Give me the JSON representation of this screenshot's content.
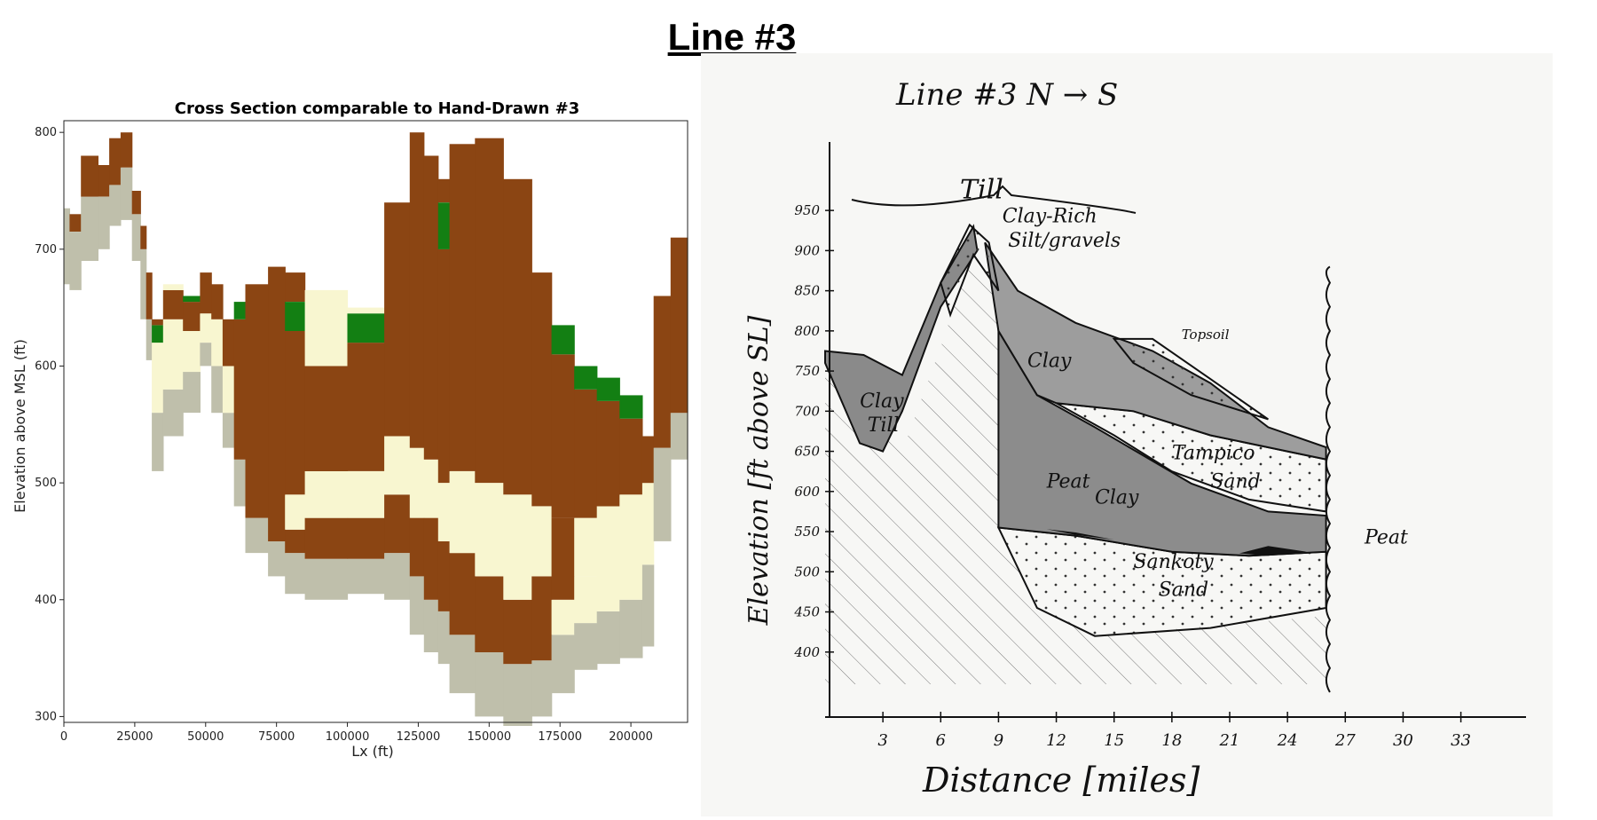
{
  "page": {
    "title": "Line #3"
  },
  "chart_data": [
    {
      "type": "heatmap",
      "title": "Cross Section comparable to Hand-Drawn #3",
      "xlabel": "Lx (ft)",
      "ylabel": "Elevation above MSL (ft)",
      "xlim": [
        0,
        220000
      ],
      "ylim": [
        295,
        810
      ],
      "xticks": [
        "0",
        "25000",
        "50000",
        "75000",
        "100000",
        "125000",
        "150000",
        "175000",
        "200000"
      ],
      "yticks": [
        "300",
        "400",
        "500",
        "600",
        "700",
        "800"
      ],
      "colors": {
        "clay": "#8b4513",
        "sand": "#f8f6d0",
        "silt_gravel": "#bfbfab",
        "topsoil": "#137f13"
      },
      "columns": [
        {
          "x": [
            0,
            2000
          ],
          "layers": [
            [
              "silt_gravel",
              670,
              735
            ]
          ]
        },
        {
          "x": [
            2000,
            6000
          ],
          "layers": [
            [
              "silt_gravel",
              665,
              715
            ],
            [
              "clay",
              715,
              730
            ]
          ]
        },
        {
          "x": [
            6000,
            12000
          ],
          "layers": [
            [
              "silt_gravel",
              690,
              745
            ],
            [
              "clay",
              745,
              780
            ]
          ]
        },
        {
          "x": [
            12000,
            16000
          ],
          "layers": [
            [
              "silt_gravel",
              700,
              745
            ],
            [
              "clay",
              745,
              772
            ]
          ]
        },
        {
          "x": [
            16000,
            20000
          ],
          "layers": [
            [
              "silt_gravel",
              720,
              755
            ],
            [
              "clay",
              755,
              795
            ]
          ]
        },
        {
          "x": [
            20000,
            24000
          ],
          "layers": [
            [
              "silt_gravel",
              725,
              770
            ],
            [
              "clay",
              770,
              800
            ]
          ]
        },
        {
          "x": [
            24000,
            27000
          ],
          "layers": [
            [
              "silt_gravel",
              690,
              730
            ],
            [
              "clay",
              730,
              750
            ]
          ]
        },
        {
          "x": [
            27000,
            29000
          ],
          "layers": [
            [
              "silt_gravel",
              640,
              700
            ],
            [
              "clay",
              700,
              720
            ]
          ]
        },
        {
          "x": [
            29000,
            31000
          ],
          "layers": [
            [
              "silt_gravel",
              605,
              640
            ],
            [
              "clay",
              640,
              680
            ]
          ]
        },
        {
          "x": [
            31000,
            35000
          ],
          "layers": [
            [
              "silt_gravel",
              510,
              560
            ],
            [
              "sand",
              560,
              620
            ],
            [
              "topsoil",
              620,
              635
            ],
            [
              "clay",
              635,
              640
            ]
          ]
        },
        {
          "x": [
            35000,
            42000
          ],
          "layers": [
            [
              "silt_gravel",
              540,
              580
            ],
            [
              "sand",
              580,
              640
            ],
            [
              "clay",
              640,
              665
            ],
            [
              "sand",
              665,
              670
            ]
          ]
        },
        {
          "x": [
            42000,
            48000
          ],
          "layers": [
            [
              "silt_gravel",
              560,
              595
            ],
            [
              "sand",
              595,
              630
            ],
            [
              "clay",
              630,
              655
            ],
            [
              "topsoil",
              655,
              660
            ]
          ]
        },
        {
          "x": [
            48000,
            52000
          ],
          "layers": [
            [
              "silt_gravel",
              600,
              620
            ],
            [
              "sand",
              620,
              645
            ],
            [
              "clay",
              645,
              680
            ]
          ]
        },
        {
          "x": [
            52000,
            56000
          ],
          "layers": [
            [
              "silt_gravel",
              560,
              600
            ],
            [
              "sand",
              600,
              640
            ],
            [
              "clay",
              640,
              670
            ]
          ]
        },
        {
          "x": [
            56000,
            60000
          ],
          "layers": [
            [
              "silt_gravel",
              530,
              560
            ],
            [
              "sand",
              560,
              600
            ],
            [
              "clay",
              600,
              640
            ]
          ]
        },
        {
          "x": [
            60000,
            64000
          ],
          "layers": [
            [
              "silt_gravel",
              480,
              520
            ],
            [
              "clay",
              520,
              640
            ],
            [
              "topsoil",
              640,
              655
            ]
          ]
        },
        {
          "x": [
            64000,
            72000
          ],
          "layers": [
            [
              "silt_gravel",
              440,
              470
            ],
            [
              "clay",
              470,
              670
            ]
          ]
        },
        {
          "x": [
            72000,
            78000
          ],
          "layers": [
            [
              "silt_gravel",
              420,
              450
            ],
            [
              "clay",
              450,
              685
            ]
          ]
        },
        {
          "x": [
            78000,
            85000
          ],
          "layers": [
            [
              "silt_gravel",
              405,
              440
            ],
            [
              "clay",
              440,
              460
            ],
            [
              "sand",
              460,
              490
            ],
            [
              "clay",
              490,
              630
            ],
            [
              "topsoil",
              630,
              655
            ],
            [
              "clay",
              655,
              680
            ]
          ]
        },
        {
          "x": [
            85000,
            100000
          ],
          "layers": [
            [
              "silt_gravel",
              400,
              435
            ],
            [
              "clay",
              435,
              470
            ],
            [
              "sand",
              470,
              510
            ],
            [
              "clay",
              510,
              600
            ],
            [
              "sand",
              600,
              665
            ]
          ]
        },
        {
          "x": [
            100000,
            113000
          ],
          "layers": [
            [
              "silt_gravel",
              405,
              435
            ],
            [
              "clay",
              435,
              470
            ],
            [
              "sand",
              470,
              510
            ],
            [
              "clay",
              510,
              620
            ],
            [
              "topsoil",
              620,
              645
            ],
            [
              "sand",
              645,
              650
            ]
          ]
        },
        {
          "x": [
            113000,
            122000
          ],
          "layers": [
            [
              "silt_gravel",
              400,
              440
            ],
            [
              "clay",
              440,
              490
            ],
            [
              "sand",
              490,
              540
            ],
            [
              "clay",
              540,
              740
            ]
          ]
        },
        {
          "x": [
            122000,
            127000
          ],
          "layers": [
            [
              "silt_gravel",
              370,
              420
            ],
            [
              "clay",
              420,
              470
            ],
            [
              "sand",
              470,
              530
            ],
            [
              "clay",
              530,
              800
            ]
          ]
        },
        {
          "x": [
            127000,
            132000
          ],
          "layers": [
            [
              "silt_gravel",
              355,
              400
            ],
            [
              "clay",
              400,
              470
            ],
            [
              "sand",
              470,
              520
            ],
            [
              "clay",
              520,
              780
            ]
          ]
        },
        {
          "x": [
            132000,
            136000
          ],
          "layers": [
            [
              "silt_gravel",
              345,
              390
            ],
            [
              "clay",
              390,
              450
            ],
            [
              "sand",
              450,
              500
            ],
            [
              "clay",
              500,
              700
            ],
            [
              "topsoil",
              700,
              740
            ],
            [
              "clay",
              740,
              760
            ]
          ]
        },
        {
          "x": [
            136000,
            145000
          ],
          "layers": [
            [
              "silt_gravel",
              320,
              370
            ],
            [
              "clay",
              370,
              440
            ],
            [
              "sand",
              440,
              510
            ],
            [
              "clay",
              510,
              790
            ]
          ]
        },
        {
          "x": [
            145000,
            155000
          ],
          "layers": [
            [
              "silt_gravel",
              300,
              355
            ],
            [
              "clay",
              355,
              420
            ],
            [
              "sand",
              420,
              500
            ],
            [
              "clay",
              500,
              795
            ]
          ]
        },
        {
          "x": [
            155000,
            165000
          ],
          "layers": [
            [
              "silt_gravel",
              292,
              345
            ],
            [
              "clay",
              345,
              400
            ],
            [
              "sand",
              400,
              490
            ],
            [
              "clay",
              490,
              760
            ]
          ]
        },
        {
          "x": [
            165000,
            172000
          ],
          "layers": [
            [
              "silt_gravel",
              300,
              348
            ],
            [
              "clay",
              348,
              420
            ],
            [
              "sand",
              420,
              480
            ],
            [
              "clay",
              480,
              680
            ]
          ]
        },
        {
          "x": [
            172000,
            180000
          ],
          "layers": [
            [
              "silt_gravel",
              320,
              370
            ],
            [
              "sand",
              370,
              400
            ],
            [
              "clay",
              400,
              470
            ],
            [
              "clay",
              470,
              610
            ],
            [
              "topsoil",
              610,
              635
            ]
          ]
        },
        {
          "x": [
            180000,
            188000
          ],
          "layers": [
            [
              "silt_gravel",
              340,
              380
            ],
            [
              "sand",
              380,
              420
            ],
            [
              "sand",
              420,
              470
            ],
            [
              "clay",
              470,
              580
            ],
            [
              "topsoil",
              580,
              600
            ]
          ]
        },
        {
          "x": [
            188000,
            196000
          ],
          "layers": [
            [
              "silt_gravel",
              345,
              390
            ],
            [
              "sand",
              390,
              480
            ],
            [
              "clay",
              480,
              570
            ],
            [
              "topsoil",
              570,
              590
            ]
          ]
        },
        {
          "x": [
            196000,
            204000
          ],
          "layers": [
            [
              "silt_gravel",
              350,
              400
            ],
            [
              "sand",
              400,
              490
            ],
            [
              "clay",
              490,
              555
            ],
            [
              "topsoil",
              555,
              575
            ]
          ]
        },
        {
          "x": [
            204000,
            208000
          ],
          "layers": [
            [
              "silt_gravel",
              360,
              430
            ],
            [
              "sand",
              430,
              500
            ],
            [
              "clay",
              500,
              540
            ]
          ]
        },
        {
          "x": [
            208000,
            214000
          ],
          "layers": [
            [
              "silt_gravel",
              450,
              530
            ],
            [
              "clay",
              530,
              660
            ]
          ]
        },
        {
          "x": [
            214000,
            220000
          ],
          "layers": [
            [
              "silt_gravel",
              520,
              560
            ],
            [
              "clay",
              560,
              710
            ]
          ]
        }
      ]
    },
    {
      "type": "area",
      "title": "Line #3 N → S",
      "xlabel": "Distance [miles]",
      "ylabel": "Elevation [ft above SL]",
      "xlim": [
        0,
        35
      ],
      "ylim": [
        350,
        980
      ],
      "xticks": [
        "3",
        "6",
        "9",
        "12",
        "15",
        "18",
        "21",
        "24",
        "27",
        "30",
        "33"
      ],
      "yticks": [
        "950",
        "900",
        "850",
        "800",
        "750",
        "700",
        "650",
        "600",
        "550",
        "500",
        "450",
        "400"
      ],
      "surface": {
        "x": [
          0,
          2,
          4,
          6,
          7.5,
          8.5,
          10,
          13,
          17,
          20,
          23,
          26
        ],
        "y": [
          775,
          770,
          760,
          870,
          930,
          910,
          850,
          810,
          775,
          735,
          680,
          655
        ]
      },
      "annotations": [
        {
          "text": "Till",
          "x": 7,
          "y": 965
        },
        {
          "text": "Clay-Rich",
          "x": 9.2,
          "y": 935
        },
        {
          "text": "Silt/gravels",
          "x": 9.5,
          "y": 905
        },
        {
          "text": "Topsoil",
          "x": 18.5,
          "y": 790
        },
        {
          "text": "Clay",
          "x": 10.5,
          "y": 755
        },
        {
          "text": "Clay",
          "x": 1.8,
          "y": 705
        },
        {
          "text": "Till",
          "x": 2.2,
          "y": 675
        },
        {
          "text": "Tampico",
          "x": 18,
          "y": 640
        },
        {
          "text": "Sand",
          "x": 20,
          "y": 605
        },
        {
          "text": "Peat",
          "x": 11.5,
          "y": 605
        },
        {
          "text": "Clay",
          "x": 14,
          "y": 585
        },
        {
          "text": "Peat",
          "x": 28,
          "y": 535
        },
        {
          "text": "Sankoty",
          "x": 16,
          "y": 505
        },
        {
          "text": "Sand",
          "x": 17.3,
          "y": 470
        }
      ]
    }
  ]
}
